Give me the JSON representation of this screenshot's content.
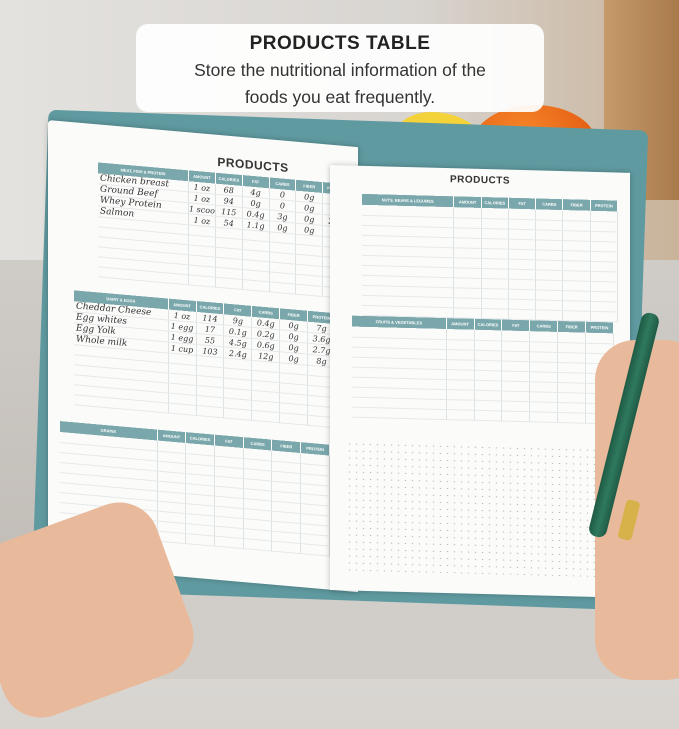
{
  "caption": {
    "title": "PRODUCTS TABLE",
    "subtitle_line1": "Store the nutritional information of the",
    "subtitle_line2": "foods you eat frequently."
  },
  "colors": {
    "header_teal": "#7aa7ab",
    "cover_teal": "#5f9aa0"
  },
  "notebook": {
    "left_page": {
      "title": "PRODUCTS",
      "tables": [
        {
          "category": "Meat, Fish & Protein",
          "columns": [
            "Amount",
            "Calories",
            "Fat",
            "Carbs",
            "Fiber",
            "Protein"
          ],
          "rows": [
            [
              "Chicken breast",
              "1 oz",
              "68",
              "4g",
              "0",
              "0g",
              "8g"
            ],
            [
              "Ground Beef",
              "1 oz",
              "94",
              "0g",
              "0",
              "0g",
              "4g"
            ],
            [
              "Whey Protein",
              "1 scoop",
              "115",
              "0.4g",
              "3g",
              "0g",
              "24g"
            ],
            [
              "Salmon",
              "1 oz",
              "54",
              "1.1g",
              "0g",
              "0g",
              "6g"
            ]
          ],
          "empty_rows": 6
        },
        {
          "category": "Dairy & Eggs",
          "columns": [
            "Amount",
            "Calories",
            "Fat",
            "Carbs",
            "Fiber",
            "Protein"
          ],
          "rows": [
            [
              "Cheddar Cheese",
              "1 oz",
              "114",
              "9g",
              "0.4g",
              "0g",
              "7g"
            ],
            [
              "Egg whites",
              "1 egg",
              "17",
              "0.1g",
              "0.2g",
              "0g",
              "3.6g"
            ],
            [
              "Egg Yolk",
              "1 egg",
              "55",
              "4.5g",
              "0.6g",
              "0g",
              "2.7g"
            ],
            [
              "Whole milk",
              "1 cup",
              "103",
              "2.4g",
              "12g",
              "0g",
              "8g"
            ]
          ],
          "empty_rows": 6
        },
        {
          "category": "Grains",
          "columns": [
            "Amount",
            "Calories",
            "Fat",
            "Carbs",
            "Fiber",
            "Protein"
          ],
          "rows": [],
          "empty_rows": 10
        }
      ]
    },
    "right_page": {
      "title": "PRODUCTS",
      "tables": [
        {
          "category": "Nuts, Beans & Legumes",
          "columns": [
            "Amount",
            "Calories",
            "Fat",
            "Carbs",
            "Fiber",
            "Protein"
          ],
          "rows": [],
          "empty_rows": 11
        },
        {
          "category": "Fruits & Vegetables",
          "columns": [
            "Amount",
            "Calories",
            "Fat",
            "Carbs",
            "Fiber",
            "Protein"
          ],
          "rows": [],
          "empty_rows": 9
        }
      ]
    }
  }
}
